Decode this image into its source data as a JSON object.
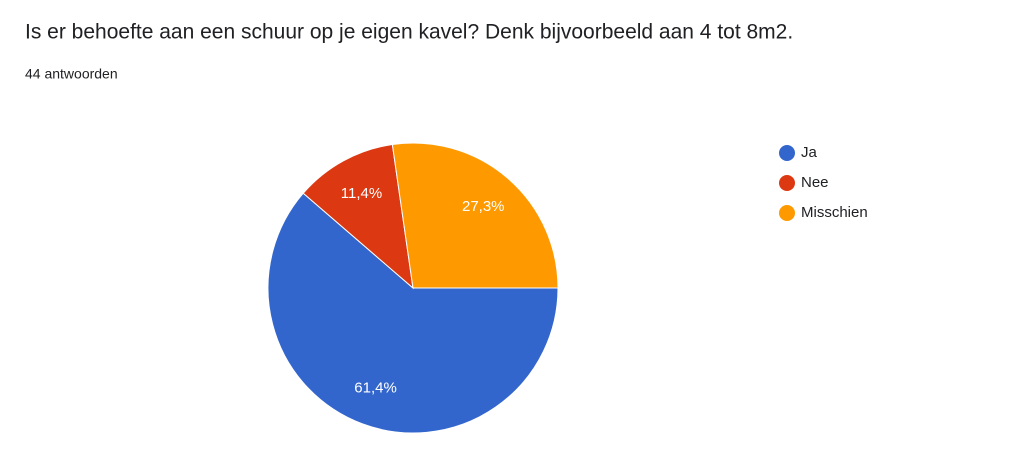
{
  "chart_data": {
    "type": "pie",
    "title": "Is er behoefte aan een schuur op je eigen kavel? Denk bijvoorbeeld aan 4 tot 8m2.",
    "subtitle": "44 antwoorden",
    "categories": [
      "Ja",
      "Nee",
      "Misschien"
    ],
    "values": [
      61.4,
      11.4,
      27.3
    ],
    "value_labels": [
      "61,4%",
      "11,4%",
      "27,3%"
    ],
    "colors": [
      "#3366cc",
      "#dc3912",
      "#ff9900"
    ],
    "legend": "right"
  }
}
